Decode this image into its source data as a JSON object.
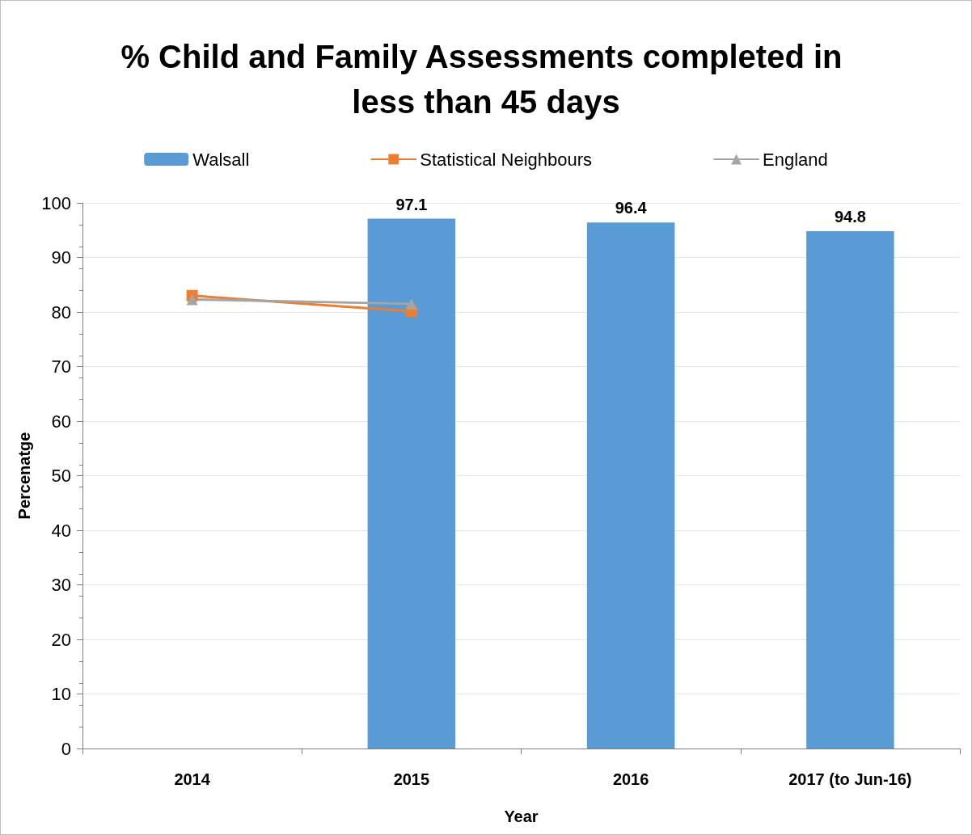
{
  "chart_data": {
    "type": "bar",
    "title": "% Child and Family Assessments completed in less than 45 days",
    "xlabel": "Year",
    "ylabel": "Percenatge",
    "categories": [
      "2014",
      "2015",
      "2016",
      "2017 (to Jun-16)"
    ],
    "series": [
      {
        "name": "Walsall",
        "color": "#5b9bd5",
        "values": [
          null,
          97.1,
          96.4,
          94.8
        ],
        "value_labels": [
          null,
          "97.1",
          "96.4",
          "94.8"
        ]
      },
      {
        "name": "Statistical Neighbours",
        "type": "line",
        "color": "#ed7d31",
        "marker": "square",
        "values": [
          83,
          80.1,
          null,
          null
        ]
      },
      {
        "name": "England",
        "type": "line",
        "color": "#a5a5a5",
        "marker": "triangle",
        "values": [
          82.3,
          81.5,
          null,
          null
        ]
      }
    ],
    "ylim": [
      0,
      100
    ],
    "yticks": [
      0,
      10,
      20,
      30,
      40,
      50,
      60,
      70,
      80,
      90,
      100
    ],
    "grid": "y",
    "legend": "top",
    "line_style": "solid"
  }
}
